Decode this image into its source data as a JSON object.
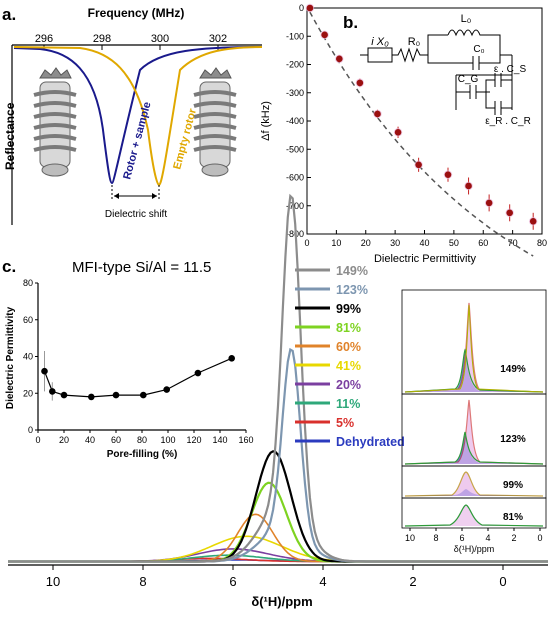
{
  "panel_a": {
    "label": "a.",
    "top_axis_title": "Frequency (MHz)",
    "top_ticks": [
      "296",
      "298",
      "300",
      "302"
    ],
    "y_axis_label": "Reflectance",
    "sample_curve_label": "Rotor + sample",
    "empty_curve_label": "Empty rotor",
    "shift_label": "Dielectric shift",
    "colors": {
      "sample": "#1a1a8c",
      "empty": "#e0a800"
    }
  },
  "panel_b": {
    "label": "b.",
    "y_axis_label": "Δf (kHz)",
    "x_axis_label": "Dielectric Permittivity",
    "circuit_labels": {
      "ix0": "i X₀",
      "r0": "R₀",
      "l0": "L₀",
      "c0": "C₀",
      "cg": "C_G",
      "ecs": "ε . C_S",
      "ercr": "ε_R . C_R"
    }
  },
  "panel_c": {
    "label": "c.",
    "title": "MFI-type Si/Al = 11.5",
    "x_axis_label": "δ(¹H)/ppm",
    "legend": [
      {
        "label": "149%",
        "color": "#8c8c8c"
      },
      {
        "label": "123%",
        "color": "#7d96b0"
      },
      {
        "label": "99%",
        "color": "#000000"
      },
      {
        "label": "81%",
        "color": "#7ed321"
      },
      {
        "label": "60%",
        "color": "#e0832a"
      },
      {
        "label": "41%",
        "color": "#e8d800"
      },
      {
        "label": "20%",
        "color": "#7b3fa0"
      },
      {
        "label": "11%",
        "color": "#2ea87a"
      },
      {
        "label": "5%",
        "color": "#d9302c"
      },
      {
        "label": "Dehydrated",
        "color": "#2b3bbf"
      }
    ],
    "inset": {
      "x_axis_label": "Pore-filling (%)",
      "y_axis_label": "Dielectric Permittivity"
    },
    "side_spectra": {
      "labels": [
        "149%",
        "123%",
        "99%",
        "81%"
      ],
      "x_axis_label": "δ(¹H)/ppm"
    }
  },
  "chart_data": [
    {
      "type": "scatter",
      "panel": "b",
      "xlabel": "Dielectric Permittivity",
      "ylabel": "Δf (kHz)",
      "xlim": [
        0,
        80
      ],
      "ylim": [
        -800,
        0
      ],
      "xticks": [
        0,
        10,
        20,
        30,
        40,
        50,
        60,
        70,
        80
      ],
      "yticks": [
        0,
        -100,
        -200,
        -300,
        -400,
        -500,
        -600,
        -700,
        -800
      ],
      "x": [
        1,
        6,
        11,
        18,
        24,
        31,
        38,
        48,
        55,
        62,
        69,
        77
      ],
      "y": [
        0,
        -95,
        -180,
        -265,
        -375,
        -440,
        -555,
        -590,
        -630,
        -690,
        -725,
        -755
      ],
      "err": [
        5,
        12,
        12,
        15,
        15,
        20,
        25,
        25,
        30,
        30,
        30,
        30
      ]
    },
    {
      "type": "line",
      "panel": "c-inset",
      "xlabel": "Pore-filling (%)",
      "ylabel": "Dielectric Permittivity",
      "xlim": [
        0,
        160
      ],
      "ylim": [
        0,
        80
      ],
      "xticks": [
        0,
        20,
        40,
        60,
        80,
        100,
        120,
        140,
        160
      ],
      "yticks": [
        0,
        20,
        40,
        60,
        80
      ],
      "x": [
        5,
        11,
        20,
        41,
        60,
        81,
        99,
        123,
        149
      ],
      "y": [
        32,
        21,
        19,
        18,
        19,
        19,
        22,
        31,
        39
      ],
      "err": [
        11,
        5,
        0,
        0,
        0,
        0,
        0,
        0,
        0
      ]
    },
    {
      "type": "line",
      "panel": "c",
      "xlabel": "δ(¹H)/ppm",
      "xlim": [
        11,
        -1
      ],
      "xticks": [
        10,
        8,
        6,
        4,
        2,
        0
      ],
      "series": [
        {
          "name": "149%",
          "center": 4.7,
          "height": 100
        },
        {
          "name": "123%",
          "center": 4.7,
          "height": 58
        },
        {
          "name": "99%",
          "center": 5.1,
          "height": 35
        },
        {
          "name": "81%",
          "center": 5.2,
          "height": 25
        },
        {
          "name": "60%",
          "center": 5.5,
          "height": 15
        },
        {
          "name": "41%",
          "center": 5.7,
          "height": 8
        },
        {
          "name": "20%",
          "center": 6.0,
          "height": 4
        },
        {
          "name": "11%",
          "center": 6.1,
          "height": 2
        },
        {
          "name": "5%",
          "center": 6.5,
          "height": 1
        },
        {
          "name": "Dehydrated",
          "center": 6.0,
          "height": 0.5
        }
      ]
    },
    {
      "type": "line",
      "panel": "c-side",
      "xlabel": "δ(¹H)/ppm",
      "xticks": [
        10,
        8,
        6,
        4,
        2,
        0
      ],
      "series": [
        {
          "name": "149%"
        },
        {
          "name": "123%"
        },
        {
          "name": "99%"
        },
        {
          "name": "81%"
        }
      ]
    }
  ]
}
